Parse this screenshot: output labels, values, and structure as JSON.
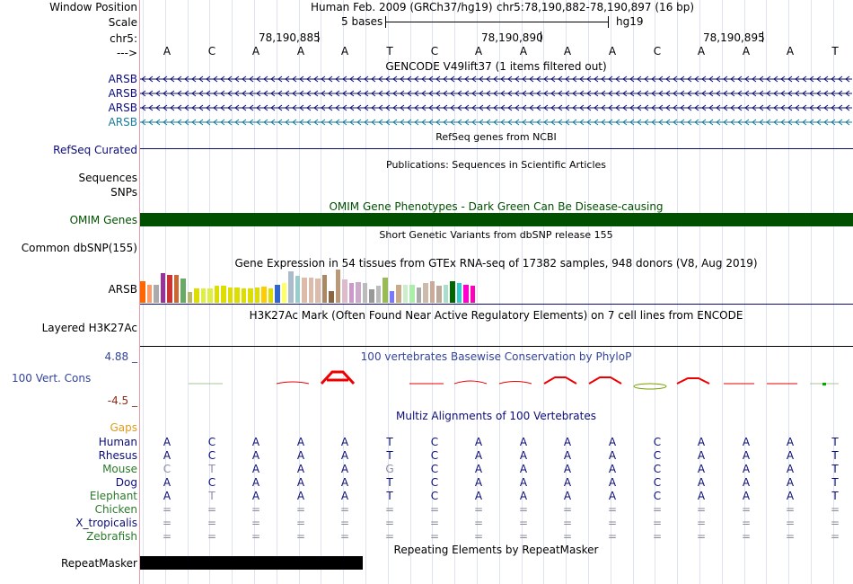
{
  "header": {
    "window_position_label": "Window Position",
    "scale_label": "Scale",
    "chrom_label": "chr5:",
    "strand_label": "--->",
    "assembly": "Human Feb. 2009 (GRCh37/hg19)",
    "position": "chr5:78,190,882-78,190,897 (16 bp)",
    "scale_text": "5 bases",
    "scale_db": "hg19",
    "ticks": [
      "78,190,885",
      "78,190,890",
      "78,190,895"
    ]
  },
  "bases": [
    "A",
    "C",
    "A",
    "A",
    "A",
    "T",
    "C",
    "A",
    "A",
    "A",
    "A",
    "C",
    "A",
    "A",
    "A",
    "T"
  ],
  "tracks": {
    "gencode": {
      "title": "GENCODE V49lift37 (1 items filtered out)",
      "items": [
        "ARSB",
        "ARSB",
        "ARSB",
        "ARSB"
      ],
      "colors": [
        "#0c0c78",
        "#0c0c78",
        "#0c0c78",
        "#1a7a9a"
      ]
    },
    "refseq": {
      "label": "RefSeq Curated",
      "title": "RefSeq genes from NCBI",
      "color": "#0c0c78"
    },
    "publications": {
      "label_sequences": "Sequences",
      "label_snps": "SNPs",
      "title": "Publications: Sequences in Scientific Articles"
    },
    "omim": {
      "label": "OMIM Genes",
      "title": "OMIM Gene Phenotypes - Dark Green Can Be Disease-causing",
      "color": "#005000"
    },
    "dbsnp": {
      "label": "Common dbSNP(155)",
      "title": "Short Genetic Variants from dbSNP release 155"
    },
    "gtex": {
      "label": "ARSB",
      "title": "Gene Expression in 54 tissues from GTEx RNA-seq of 17382 samples, 948 donors (V8, Aug 2019)",
      "bars": [
        {
          "h": 0.66,
          "c": "#ff6600"
        },
        {
          "h": 0.55,
          "c": "#ff9966"
        },
        {
          "h": 0.55,
          "c": "#aaaaaa"
        },
        {
          "h": 0.9,
          "c": "#993399"
        },
        {
          "h": 0.85,
          "c": "#cc3333"
        },
        {
          "h": 0.85,
          "c": "#cc6633"
        },
        {
          "h": 0.72,
          "c": "#66aa66"
        },
        {
          "h": 0.33,
          "c": "#bbb76a"
        },
        {
          "h": 0.42,
          "c": "#dddd00"
        },
        {
          "h": 0.42,
          "c": "#ddee44"
        },
        {
          "h": 0.42,
          "c": "#ddee44"
        },
        {
          "h": 0.5,
          "c": "#dddd00"
        },
        {
          "h": 0.5,
          "c": "#dddd00"
        },
        {
          "h": 0.45,
          "c": "#dddd00"
        },
        {
          "h": 0.45,
          "c": "#dddd00"
        },
        {
          "h": 0.42,
          "c": "#dddd00"
        },
        {
          "h": 0.42,
          "c": "#dddd00"
        },
        {
          "h": 0.45,
          "c": "#dddd00"
        },
        {
          "h": 0.48,
          "c": "#ffcc00"
        },
        {
          "h": 0.42,
          "c": "#dddd00"
        },
        {
          "h": 0.55,
          "c": "#3366cc"
        },
        {
          "h": 0.6,
          "c": "#ffff66"
        },
        {
          "h": 0.95,
          "c": "#aabbcc"
        },
        {
          "h": 0.8,
          "c": "#99cccc"
        },
        {
          "h": 0.75,
          "c": "#ddbbaa"
        },
        {
          "h": 0.75,
          "c": "#ddbbaa"
        },
        {
          "h": 0.72,
          "c": "#ddbbaa"
        },
        {
          "h": 0.85,
          "c": "#aa8866"
        },
        {
          "h": 0.35,
          "c": "#886644"
        },
        {
          "h": 1.0,
          "c": "#bb9977"
        },
        {
          "h": 0.7,
          "c": "#ddbbcc"
        },
        {
          "h": 0.6,
          "c": "#cc99cc"
        },
        {
          "h": 0.62,
          "c": "#ccaacc"
        },
        {
          "h": 0.6,
          "c": "#bbbbbb"
        },
        {
          "h": 0.4,
          "c": "#999999"
        },
        {
          "h": 0.5,
          "c": "#bbbbbb"
        },
        {
          "h": 0.75,
          "c": "#99bb55"
        },
        {
          "h": 0.35,
          "c": "#7777ff"
        },
        {
          "h": 0.55,
          "c": "#ccaa88"
        },
        {
          "h": 0.55,
          "c": "#cceecc"
        },
        {
          "h": 0.55,
          "c": "#aaeeaa"
        },
        {
          "h": 0.45,
          "c": "#aaaaaa"
        },
        {
          "h": 0.6,
          "c": "#ccbbaa"
        },
        {
          "h": 0.65,
          "c": "#ccaa99"
        },
        {
          "h": 0.5,
          "c": "#bbaa99"
        },
        {
          "h": 0.55,
          "c": "#aaddcc"
        },
        {
          "h": 0.65,
          "c": "#006600"
        },
        {
          "h": 0.6,
          "c": "#33cccc"
        },
        {
          "h": 0.55,
          "c": "#ff00cc"
        },
        {
          "h": 0.5,
          "c": "#ff00bb"
        }
      ]
    },
    "h3k27ac": {
      "label": "Layered H3K27Ac",
      "title": "H3K27Ac Mark (Often Found Near Active Regulatory Elements) on 7 cell lines from ENCODE"
    },
    "phylop": {
      "label": "100 Vert. Cons",
      "max_label": "4.88 _",
      "min_label": "-4.5 _",
      "title": "100 vertebrates Basewise Conservation by PhyloP"
    },
    "gaps": {
      "label": "Gaps",
      "color": "#e39a1c"
    },
    "multiz": {
      "title": "Multiz Alignments of 100 Vertebrates",
      "species": [
        {
          "name": "Human",
          "color": "#0c0c78",
          "seq": [
            "A",
            "C",
            "A",
            "A",
            "A",
            "T",
            "C",
            "A",
            "A",
            "A",
            "A",
            "C",
            "A",
            "A",
            "A",
            "T"
          ]
        },
        {
          "name": "Rhesus",
          "color": "#0c0c78",
          "seq": [
            "A",
            "C",
            "A",
            "A",
            "A",
            "T",
            "C",
            "A",
            "A",
            "A",
            "A",
            "C",
            "A",
            "A",
            "A",
            "T"
          ]
        },
        {
          "name": "Mouse",
          "color": "#2a7a2a",
          "seq": [
            "C",
            "T",
            "A",
            "A",
            "A",
            "G",
            "C",
            "A",
            "A",
            "A",
            "A",
            "C",
            "A",
            "A",
            "A",
            "T"
          ]
        },
        {
          "name": "Dog",
          "color": "#0c0c78",
          "seq": [
            "A",
            "C",
            "A",
            "A",
            "A",
            "T",
            "C",
            "A",
            "A",
            "A",
            "A",
            "C",
            "A",
            "A",
            "A",
            "T"
          ]
        },
        {
          "name": "Elephant",
          "color": "#2a7a2a",
          "seq": [
            "A",
            "T",
            "A",
            "A",
            "A",
            "T",
            "C",
            "A",
            "A",
            "A",
            "A",
            "C",
            "A",
            "A",
            "A",
            "T"
          ]
        },
        {
          "name": "Chicken",
          "color": "#2a7a2a",
          "seq": [
            "=",
            "=",
            "=",
            "=",
            "=",
            "=",
            "=",
            "=",
            "=",
            "=",
            "=",
            "=",
            "=",
            "=",
            "=",
            "="
          ]
        },
        {
          "name": "X_tropicalis",
          "color": "#0c0c78",
          "seq": [
            "=",
            "=",
            "=",
            "=",
            "=",
            "=",
            "=",
            "=",
            "=",
            "=",
            "=",
            "=",
            "=",
            "=",
            "=",
            "="
          ]
        },
        {
          "name": "Zebrafish",
          "color": "#2a7a2a",
          "seq": [
            "=",
            "=",
            "=",
            "=",
            "=",
            "=",
            "=",
            "=",
            "=",
            "=",
            "=",
            "=",
            "=",
            "=",
            "=",
            "="
          ]
        }
      ],
      "mismatch": {
        "Mouse": [
          0,
          1,
          5
        ],
        "Elephant": [
          1
        ]
      }
    },
    "repeatmasker": {
      "label": "RepeatMasker",
      "title": "Repeating Elements by RepeatMasker"
    }
  }
}
